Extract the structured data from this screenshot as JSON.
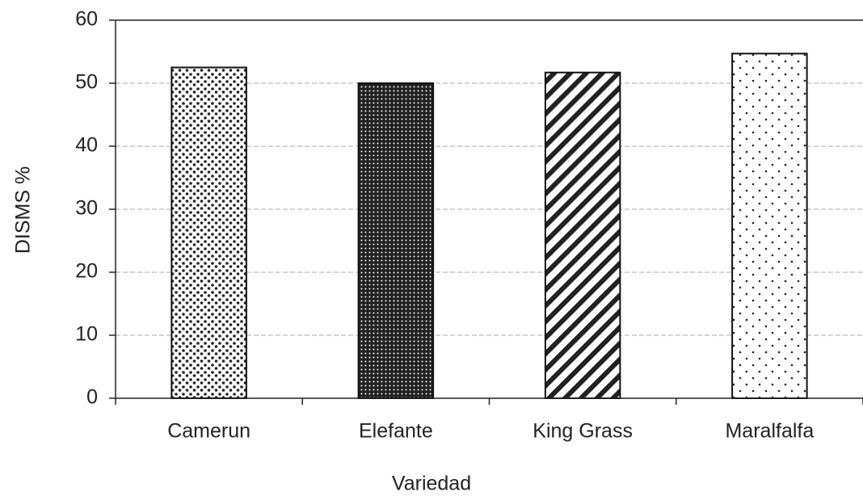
{
  "chart_data": {
    "type": "bar",
    "x_label": "Variedad",
    "y_label": "DISMS %",
    "categories": [
      "Camerun",
      "Elefante",
      "King Grass",
      "Maralfalfa"
    ],
    "values": [
      52.5,
      50,
      51.7,
      54.7
    ],
    "ylim": [
      0,
      60
    ],
    "yticks": [
      0,
      10,
      20,
      30,
      40,
      50,
      60
    ],
    "grid": true
  }
}
